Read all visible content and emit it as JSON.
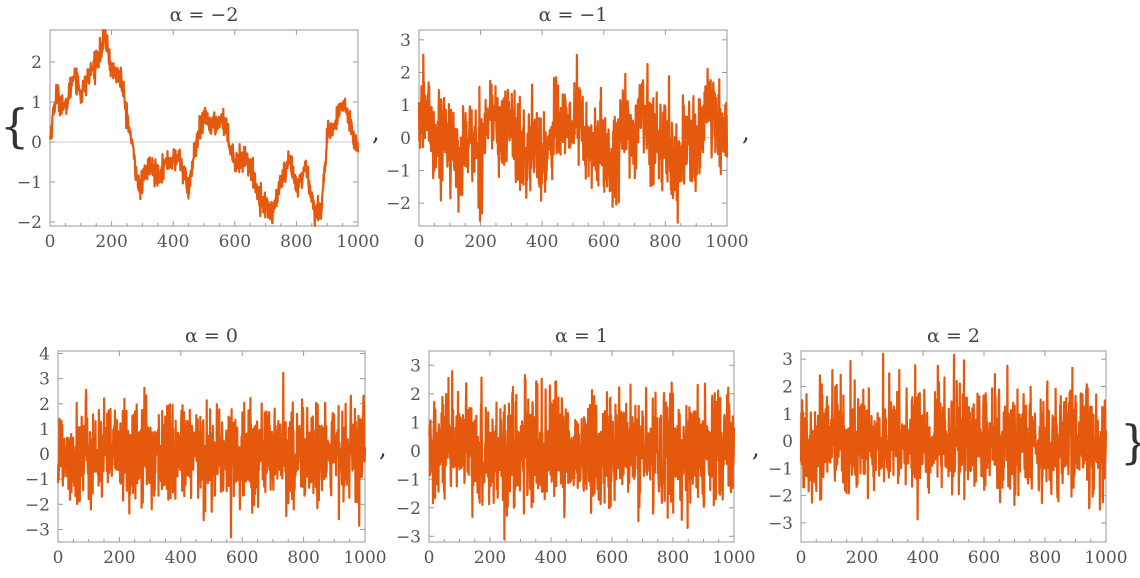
{
  "colors": {
    "series": "#E5590F",
    "frame": "#999999",
    "axis_line": "#CCCCCC"
  },
  "punctuation": {
    "open_brace": "{",
    "close_brace": "}",
    "comma": ","
  },
  "chart_data": [
    {
      "type": "line",
      "title": "α = −2",
      "alpha": -2,
      "n_points": 1000,
      "xlim": [
        0,
        1000
      ],
      "ylim": [
        -2.1,
        2.8
      ],
      "xticks": [
        0,
        200,
        400,
        600,
        800,
        1000
      ],
      "yticks": [
        -2,
        -1,
        0,
        1,
        2
      ],
      "x": [
        0,
        20,
        50,
        80,
        100,
        130,
        160,
        180,
        200,
        230,
        260,
        290,
        320,
        350,
        380,
        420,
        450,
        470,
        500,
        530,
        560,
        600,
        640,
        680,
        720,
        750,
        780,
        800,
        830,
        860,
        880,
        900,
        930,
        950,
        970,
        999
      ],
      "y": [
        0.1,
        1.2,
        0.8,
        1.8,
        1.2,
        1.7,
        2.2,
        2.6,
        1.8,
        1.6,
        0.2,
        -1.2,
        -0.6,
        -0.8,
        -0.5,
        -0.4,
        -1.2,
        -0.2,
        0.6,
        0.4,
        0.6,
        -0.5,
        -0.4,
        -1.4,
        -1.8,
        -1.0,
        -0.5,
        -1.2,
        -0.6,
        -1.8,
        -1.6,
        0.1,
        0.5,
        1.0,
        0.6,
        -0.2
      ],
      "noise_amplitude": 0.25
    },
    {
      "type": "line",
      "title": "α = −1",
      "alpha": -1,
      "n_points": 1000,
      "xlim": [
        0,
        1000
      ],
      "ylim": [
        -2.7,
        3.3
      ],
      "xticks": [
        0,
        200,
        400,
        600,
        800,
        1000
      ],
      "yticks": [
        -2,
        -1,
        0,
        1,
        2,
        3
      ],
      "y_range": [
        -2.6,
        3.2
      ],
      "noise_amplitude": 0.9
    },
    {
      "type": "line",
      "title": "α = 0",
      "alpha": 0,
      "n_points": 1000,
      "xlim": [
        0,
        1000
      ],
      "ylim": [
        -3.5,
        4.1
      ],
      "xticks": [
        0,
        200,
        400,
        600,
        800,
        1000
      ],
      "yticks": [
        -3,
        -2,
        -1,
        0,
        1,
        2,
        3,
        4
      ],
      "y_range": [
        -3.4,
        4.0
      ],
      "noise_amplitude": 1.0
    },
    {
      "type": "line",
      "title": "α = 1",
      "alpha": 1,
      "n_points": 1000,
      "xlim": [
        0,
        1000
      ],
      "ylim": [
        -3.2,
        3.5
      ],
      "xticks": [
        0,
        200,
        400,
        600,
        800,
        1000
      ],
      "yticks": [
        -3,
        -2,
        -1,
        0,
        1,
        2,
        3
      ],
      "y_range": [
        -3.1,
        3.4
      ],
      "noise_amplitude": 1.0
    },
    {
      "type": "line",
      "title": "α = 2",
      "alpha": 2,
      "n_points": 1000,
      "xlim": [
        0,
        1000
      ],
      "ylim": [
        -3.7,
        3.3
      ],
      "xticks": [
        0,
        200,
        400,
        600,
        800,
        1000
      ],
      "yticks": [
        -3,
        -2,
        -1,
        0,
        1,
        2,
        3
      ],
      "y_range": [
        -3.6,
        3.2
      ],
      "noise_amplitude": 1.0
    }
  ]
}
